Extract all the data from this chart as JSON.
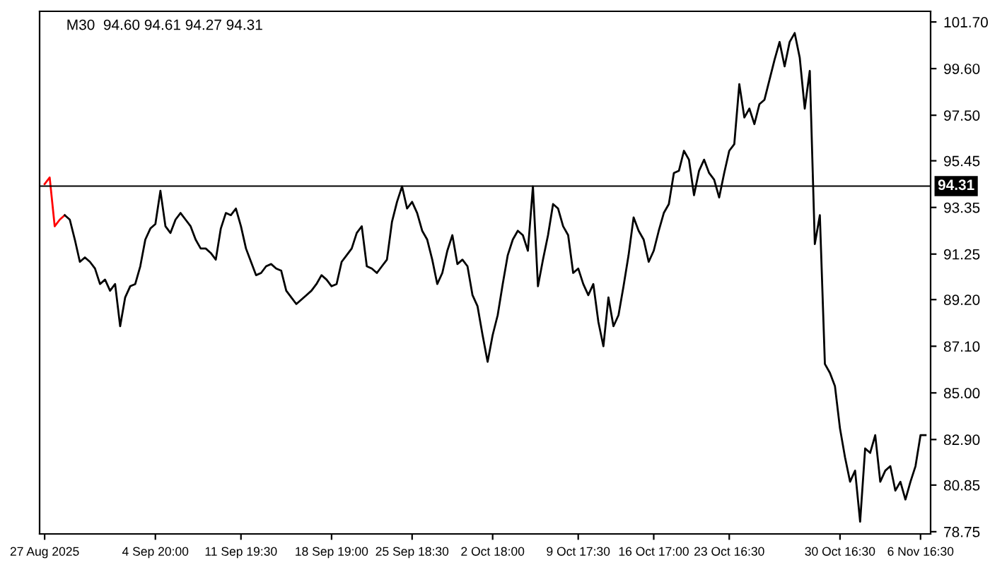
{
  "chart_data": {
    "type": "line",
    "title": "M30  94.60 94.61 94.27 94.31",
    "categories": [
      "27 Aug 2025",
      null,
      null,
      null,
      null,
      null,
      null,
      null,
      null,
      null,
      null,
      null,
      null,
      null,
      null,
      null,
      null,
      null,
      null,
      null,
      null,
      null,
      "4 Sep 20:00",
      null,
      null,
      null,
      null,
      null,
      null,
      null,
      null,
      null,
      null,
      null,
      null,
      null,
      null,
      null,
      null,
      "11 Sep 19:30",
      null,
      null,
      null,
      null,
      null,
      null,
      null,
      null,
      null,
      null,
      null,
      null,
      null,
      null,
      null,
      null,
      null,
      "18 Sep 19:00",
      null,
      null,
      null,
      null,
      null,
      null,
      null,
      null,
      null,
      null,
      null,
      null,
      null,
      null,
      null,
      "25 Sep 18:30",
      null,
      null,
      null,
      null,
      null,
      null,
      null,
      null,
      null,
      null,
      null,
      null,
      null,
      null,
      null,
      "2 Oct 18:00",
      null,
      null,
      null,
      null,
      null,
      null,
      null,
      null,
      null,
      null,
      null,
      null,
      null,
      null,
      null,
      null,
      "9 Oct 17:30",
      null,
      null,
      null,
      null,
      null,
      null,
      null,
      null,
      null,
      null,
      null,
      null,
      null,
      null,
      "16 Oct 17:00",
      null,
      null,
      null,
      null,
      null,
      null,
      null,
      null,
      null,
      null,
      null,
      null,
      null,
      null,
      "23 Oct 16:30",
      null,
      null,
      null,
      null,
      null,
      null,
      null,
      null,
      null,
      null,
      null,
      null,
      null,
      null,
      null,
      null,
      null,
      null,
      null,
      null,
      null,
      "30 Oct 16:30",
      null,
      null,
      null,
      null,
      null,
      null,
      null,
      null,
      null,
      null,
      null,
      null,
      null,
      null,
      null,
      "6 Nov 16:30",
      null
    ],
    "series": [
      {
        "color": "#ff0000",
        "values": [
          94.4,
          94.7,
          92.5,
          92.8,
          93.0,
          null,
          null,
          null,
          null,
          null,
          null,
          null,
          null,
          null,
          null,
          null,
          null,
          null,
          null,
          null,
          null,
          null,
          null,
          null,
          null,
          null,
          null,
          null,
          null,
          null,
          null,
          null,
          null,
          null,
          null,
          null,
          null,
          null,
          null,
          null,
          null,
          null,
          null,
          null,
          null,
          null,
          null,
          null,
          null,
          null,
          null,
          null,
          null,
          null,
          null,
          null,
          null,
          null,
          null,
          null,
          null,
          null,
          null,
          null,
          null,
          null,
          null,
          null,
          null,
          null,
          null,
          null,
          null,
          null,
          null,
          null,
          null,
          null,
          null,
          null,
          null,
          null,
          null,
          null,
          null,
          null,
          null,
          null,
          null,
          null,
          null,
          null,
          null,
          null,
          null,
          null,
          null,
          null,
          null,
          null,
          null,
          null,
          null,
          null,
          null,
          null,
          null,
          null,
          null,
          null,
          null,
          null,
          null,
          null,
          null,
          null,
          null,
          null,
          null,
          null,
          null,
          null,
          null,
          null,
          null,
          null,
          null,
          null,
          null,
          null,
          null,
          null,
          null,
          null,
          null,
          null,
          null,
          null,
          null,
          null,
          null,
          null,
          null,
          null,
          null,
          null,
          null,
          null,
          null,
          null,
          null,
          null,
          null,
          null,
          null,
          null,
          null,
          null,
          null,
          null,
          null,
          null,
          null,
          null,
          null,
          null,
          null,
          null,
          null,
          null,
          null,
          null,
          null,
          null,
          null,
          null
        ]
      },
      {
        "color": "#000000",
        "values": [
          null,
          null,
          null,
          null,
          93.0,
          92.8,
          91.9,
          90.9,
          91.1,
          90.9,
          90.6,
          89.9,
          90.1,
          89.6,
          89.9,
          88.0,
          89.3,
          89.8,
          89.9,
          90.7,
          91.9,
          92.4,
          92.6,
          94.1,
          92.5,
          92.2,
          92.8,
          93.1,
          92.8,
          92.5,
          91.9,
          91.5,
          91.5,
          91.3,
          91.0,
          92.4,
          93.1,
          93.0,
          93.3,
          92.5,
          91.5,
          90.9,
          90.3,
          90.4,
          90.7,
          90.8,
          90.6,
          90.5,
          89.6,
          89.3,
          89.0,
          89.2,
          89.4,
          89.6,
          89.9,
          90.3,
          90.1,
          89.8,
          89.9,
          90.9,
          91.2,
          91.5,
          92.2,
          92.5,
          90.7,
          90.6,
          90.4,
          90.7,
          91.0,
          92.7,
          93.6,
          94.3,
          93.3,
          93.6,
          93.1,
          92.3,
          91.9,
          91.0,
          89.9,
          90.4,
          91.4,
          92.1,
          90.8,
          91.0,
          90.7,
          89.4,
          88.9,
          87.6,
          86.4,
          87.6,
          88.5,
          89.9,
          91.2,
          91.9,
          92.3,
          92.1,
          91.4,
          94.3,
          89.8,
          91.0,
          92.1,
          93.5,
          93.3,
          92.5,
          92.1,
          90.4,
          90.6,
          89.9,
          89.4,
          89.9,
          88.2,
          87.1,
          89.3,
          88.0,
          88.5,
          89.8,
          91.2,
          92.9,
          92.3,
          91.9,
          90.9,
          91.4,
          92.3,
          93.1,
          93.5,
          94.9,
          95.0,
          95.9,
          95.5,
          93.9,
          95.0,
          95.5,
          94.9,
          94.6,
          93.8,
          94.9,
          95.9,
          96.2,
          98.9,
          97.4,
          97.8,
          97.1,
          98.0,
          98.2,
          99.1,
          100.0,
          100.8,
          99.7,
          100.8,
          101.2,
          100.1,
          97.8,
          99.5,
          91.7,
          93.0,
          86.3,
          85.9,
          85.3,
          83.4,
          82.1,
          81.0,
          81.5,
          79.2,
          82.5,
          82.3,
          83.1,
          81.0,
          81.5,
          81.7,
          80.6,
          81.0,
          80.2,
          81.0,
          81.7,
          83.1,
          83.1
        ]
      }
    ],
    "ylim": [
      78.65,
      102.18
    ],
    "yticks": [
      {
        "value": 78.75,
        "label": "78.75"
      },
      {
        "value": 80.85,
        "label": "80.85"
      },
      {
        "value": 82.9,
        "label": "82.90"
      },
      {
        "value": 85.0,
        "label": "85.00"
      },
      {
        "value": 87.1,
        "label": "87.10"
      },
      {
        "value": 89.2,
        "label": "89.20"
      },
      {
        "value": 91.25,
        "label": "91.25"
      },
      {
        "value": 93.35,
        "label": "93.35"
      },
      {
        "value": 95.45,
        "label": "95.45"
      },
      {
        "value": 97.5,
        "label": "97.50"
      },
      {
        "value": 99.6,
        "label": "99.60"
      },
      {
        "value": 101.7,
        "label": "101.70"
      }
    ],
    "ref_lines": [
      {
        "axis": "y",
        "value": 94.31,
        "label": "94.31",
        "color": "#000000"
      }
    ],
    "grid": false,
    "legend": false,
    "marker": "none",
    "line_style": "solid"
  }
}
